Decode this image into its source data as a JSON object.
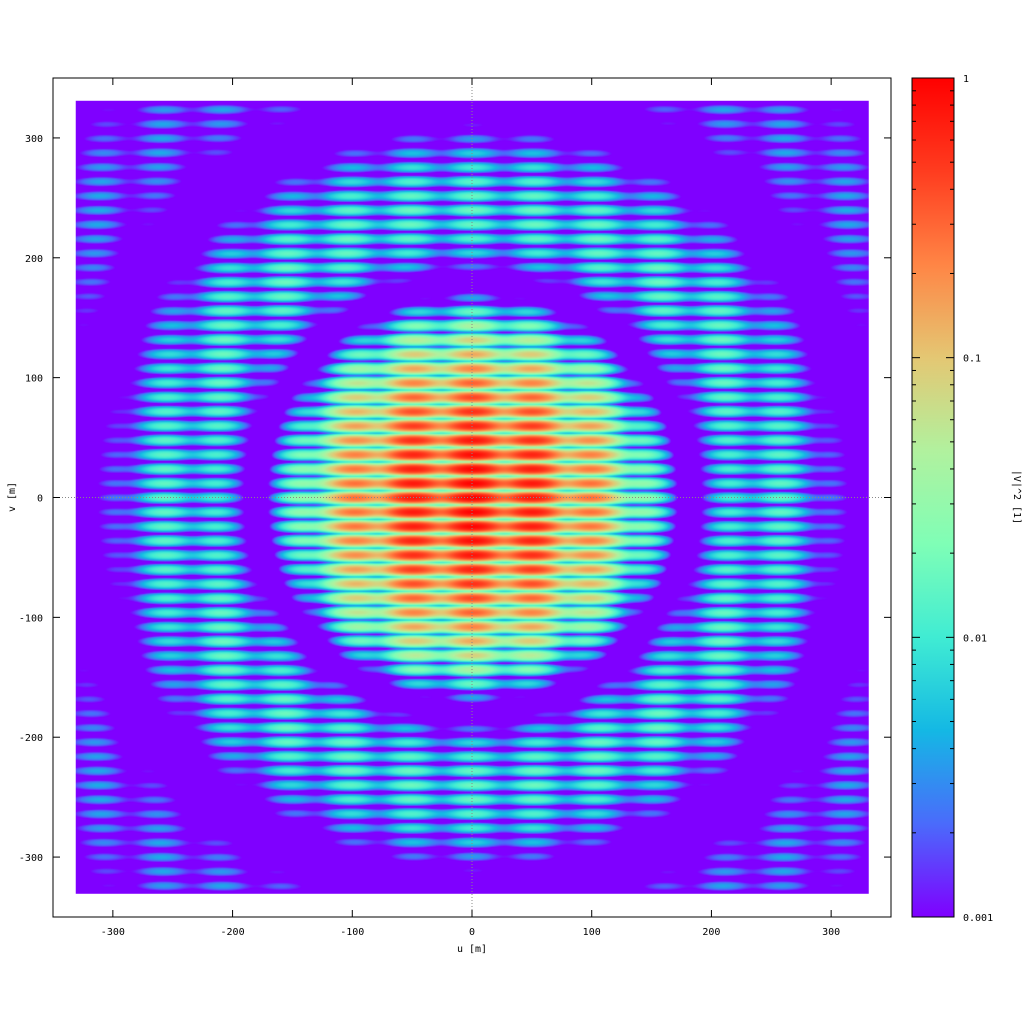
{
  "chart_data": {
    "type": "heatmap",
    "title": "",
    "xlabel": "u [m]",
    "ylabel": "v [m]",
    "xlim": [
      -350,
      350
    ],
    "ylim": [
      -350,
      350
    ],
    "data_extent": {
      "x": [
        -331,
        331
      ],
      "y": [
        -331,
        331
      ]
    },
    "xticks": [
      -300,
      -200,
      -100,
      0,
      100,
      200,
      300
    ],
    "yticks": [
      -300,
      -200,
      -100,
      0,
      100,
      200,
      300
    ],
    "x_tick_labels": [
      "-300",
      "-200",
      "-100",
      "0",
      "100",
      "200",
      "300"
    ],
    "y_tick_labels": [
      "-300",
      "-200",
      "-100",
      "0",
      "100",
      "200",
      "300"
    ],
    "zero_lines": "dotted",
    "colorbar": {
      "label": "|V|^2 [1]",
      "scale": "log",
      "range": [
        0.001,
        1
      ],
      "ticks": [
        0.001,
        0.01,
        0.1,
        1
      ],
      "tick_labels": [
        "0.001",
        "0.01",
        "0.1",
        "1"
      ],
      "colormap": [
        "#7f00ff",
        "#4a6bfb",
        "#14b8e4",
        "#40ecd3",
        "#7ffeb6",
        "#b1f19e",
        "#e4c773",
        "#ff8545",
        "#ff3c1f",
        "#ff0000"
      ]
    },
    "pattern": {
      "description_values": {
        "ring_radius_m": 52,
        "fringe_period_v_m": 12,
        "peak_value": 1,
        "floor_value": 0.001
      }
    }
  }
}
